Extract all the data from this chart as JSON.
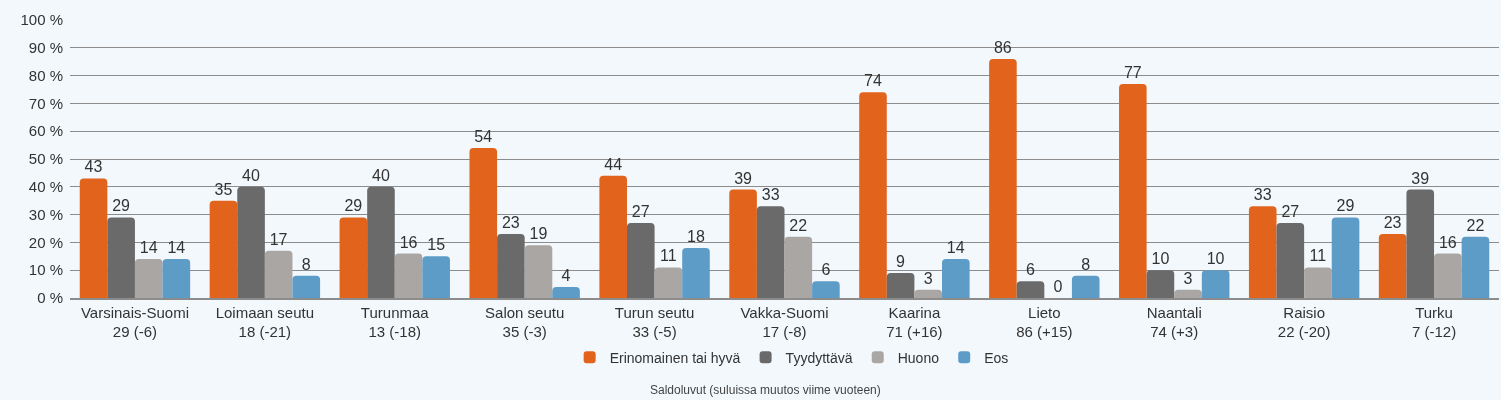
{
  "chart_data": {
    "type": "bar",
    "categories": [
      "Varsinais-Suomi\n29 (-6)",
      "Loimaan seutu\n18 (-21)",
      "Turunmaa\n13 (-18)",
      "Salon seutu\n35 (-3)",
      "Turun seutu\n33 (-5)",
      "Vakka-Suomi\n17 (-8)",
      "Kaarina\n71 (+16)",
      "Lieto\n86 (+15)",
      "Naantali\n74 (+3)",
      "Raisio\n22 (-20)",
      "Turku\n7 (-12)"
    ],
    "series": [
      {
        "name": "Erinomainen tai hyvä",
        "color": "#e2641c",
        "values": [
          43,
          35,
          29,
          54,
          44,
          39,
          74,
          86,
          77,
          33,
          23
        ]
      },
      {
        "name": "Tyydyttävä",
        "color": "#6a6a6a",
        "values": [
          29,
          40,
          40,
          23,
          27,
          33,
          9,
          6,
          10,
          27,
          39
        ]
      },
      {
        "name": "Huono",
        "color": "#a9a6a3",
        "values": [
          14,
          17,
          16,
          19,
          11,
          22,
          3,
          0,
          3,
          11,
          16
        ]
      },
      {
        "name": "Eos",
        "color": "#5e9cc8",
        "values": [
          14,
          8,
          15,
          4,
          18,
          6,
          14,
          8,
          10,
          29,
          22
        ]
      }
    ],
    "ylim": [
      0,
      100
    ],
    "yticks": [
      {
        "value": 0,
        "label": "0 %"
      },
      {
        "value": 10,
        "label": "10 %"
      },
      {
        "value": 20,
        "label": "20 %"
      },
      {
        "value": 30,
        "label": "30 %"
      },
      {
        "value": 40,
        "label": "40 %"
      },
      {
        "value": 50,
        "label": "50 %"
      },
      {
        "value": 60,
        "label": "60 %"
      },
      {
        "value": 70,
        "label": "70 %"
      },
      {
        "value": 80,
        "label": "80 %"
      },
      {
        "value": 90,
        "label": "90 %"
      },
      {
        "value": 100,
        "label": "100 %"
      }
    ],
    "grid": "y",
    "legend": "bottom",
    "data_labels": true,
    "annotations": [
      "Saldoluvut (suluissa muutos viime vuoteen)"
    ]
  }
}
